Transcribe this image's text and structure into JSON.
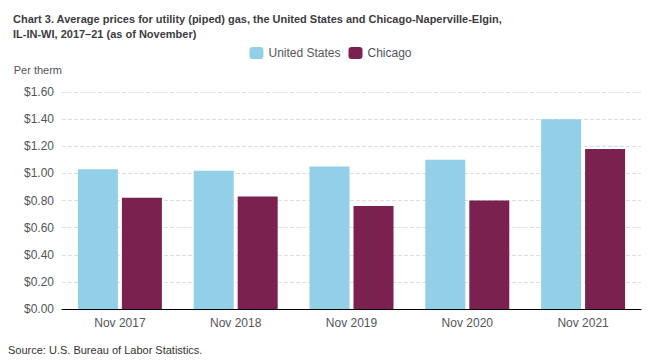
{
  "chart_data": {
    "type": "bar",
    "title": "Chart 3. Average prices for utility (piped) gas, the United States and Chicago-Naperville-Elgin,\nIL-IN-WI, 2017–21 (as of November)",
    "y_label": "Per therm",
    "categories": [
      "Nov 2017",
      "Nov 2018",
      "Nov 2019",
      "Nov 2020",
      "Nov 2021"
    ],
    "series": [
      {
        "name": "United States",
        "color": "#92D0E8",
        "values": [
          1.03,
          1.02,
          1.05,
          1.1,
          1.4
        ]
      },
      {
        "name": "Chicago",
        "color": "#7B2150",
        "values": [
          0.82,
          0.83,
          0.76,
          0.8,
          1.18
        ]
      }
    ],
    "ylim": [
      0.0,
      1.6
    ],
    "yticks": [
      {
        "value": 0.0,
        "label": "$0.00"
      },
      {
        "value": 0.2,
        "label": "$0.20"
      },
      {
        "value": 0.4,
        "label": "$0.40"
      },
      {
        "value": 0.6,
        "label": "$0.60"
      },
      {
        "value": 0.8,
        "label": "$0.80"
      },
      {
        "value": 1.0,
        "label": "$1.00"
      },
      {
        "value": 1.2,
        "label": "$1.20"
      },
      {
        "value": 1.4,
        "label": "$1.40"
      },
      {
        "value": 1.6,
        "label": "$1.60"
      }
    ],
    "annotations": [
      "Source: U.S. Bureau of Labor Statistics."
    ],
    "grid": true,
    "legend": "top"
  }
}
